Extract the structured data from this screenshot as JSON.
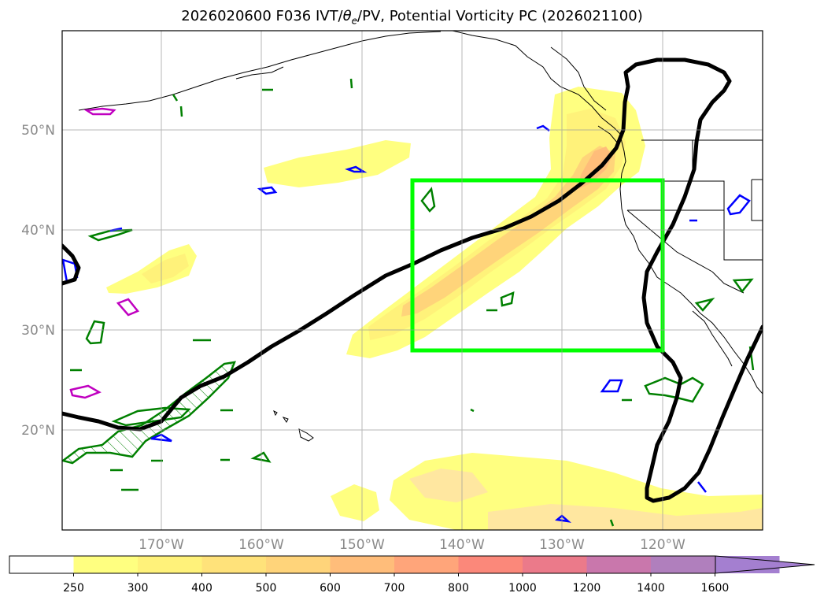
{
  "title_parts": [
    "2026020600 F036 IVT/",
    "θ",
    "e",
    "/PV, Potential Vorticity PC (2026021100)"
  ],
  "lat_labels": [
    "50°N",
    "40°N",
    "30°N",
    "20°N"
  ],
  "lon_labels": [
    "170°W",
    "160°W",
    "150°W",
    "140°W",
    "130°W",
    "120°W"
  ],
  "colorbar": {
    "ticks": [
      "250",
      "300",
      "400",
      "500",
      "600",
      "700",
      "800",
      "1000",
      "1200",
      "1400",
      "1600"
    ],
    "colors": [
      "#ffffff",
      "#ffff80",
      "#fff27a",
      "#ffe27a",
      "#ffd47a",
      "#ffbd7a",
      "#ffa57a",
      "#fb887a",
      "#eb7a8a",
      "#c977ac",
      "#b07fbd",
      "#a47fd0"
    ]
  },
  "box_color": "#00ff00",
  "contour_colors": {
    "pc": "#000000",
    "pv_green": "#008000",
    "pv_blue": "#0000ff",
    "pv_magenta": "#c000c0"
  }
}
